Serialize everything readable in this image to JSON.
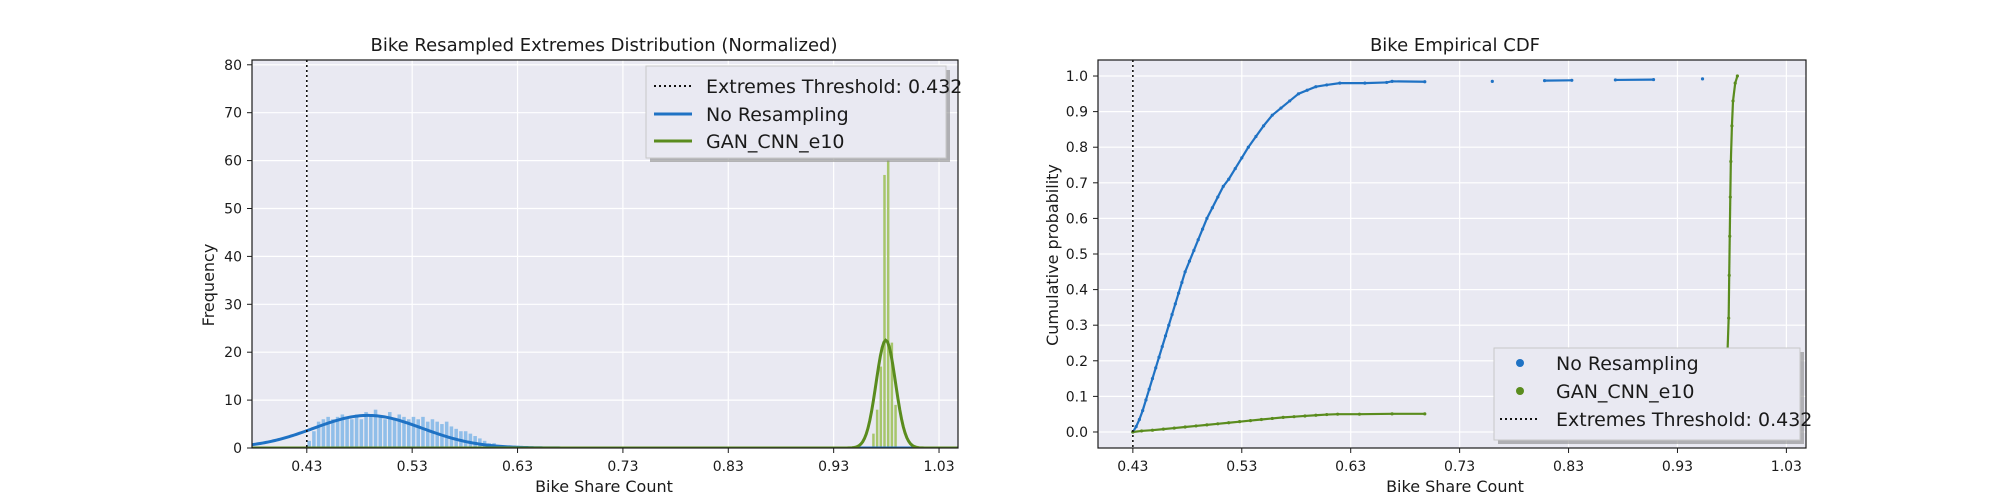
{
  "colors": {
    "plot_bg": "#e9e9f2",
    "grid": "#ffffff",
    "frame": "#1a1a1a",
    "blue": "#1f72c4",
    "blue_hist": "#8bbce8",
    "green": "#5a8c1e",
    "green_hist": "#a3c464",
    "threshold": "#111111"
  },
  "chart_data": [
    {
      "type": "histogram",
      "title": "Bike Resampled Extremes Distribution (Normalized)",
      "xlabel": "Bike Share Count",
      "ylabel": "Frequency",
      "xlim": [
        0.38,
        1.05
      ],
      "ylim": [
        0,
        81
      ],
      "xticks": [
        "0.43",
        "0.53",
        "0.63",
        "0.73",
        "0.83",
        "0.93",
        "1.03"
      ],
      "xtick_values": [
        0.432,
        0.532,
        0.632,
        0.732,
        0.832,
        0.932,
        1.032
      ],
      "yticks": [
        "0",
        "10",
        "20",
        "30",
        "40",
        "50",
        "60",
        "70",
        "80"
      ],
      "ytick_values": [
        0,
        10,
        20,
        30,
        40,
        50,
        60,
        70,
        80
      ],
      "grid": true,
      "legend_position": "top-right",
      "legend": [
        {
          "label": "Extremes Threshold: 0.432",
          "style": "dotted"
        },
        {
          "label": "No Resampling",
          "style": "line-blue"
        },
        {
          "label": "GAN_CNN_e10",
          "style": "line-green"
        }
      ],
      "threshold": 0.432,
      "series": [
        {
          "name": "No Resampling",
          "bin_width": 0.0045,
          "bins": [
            [
              0.432,
              1.5
            ],
            [
              0.4365,
              3.5
            ],
            [
              0.441,
              5.5
            ],
            [
              0.4455,
              6.0
            ],
            [
              0.45,
              6.5
            ],
            [
              0.4545,
              6.0
            ],
            [
              0.459,
              6.5
            ],
            [
              0.4635,
              7.0
            ],
            [
              0.468,
              6.5
            ],
            [
              0.4725,
              6.0
            ],
            [
              0.477,
              7.0
            ],
            [
              0.4815,
              6.0
            ],
            [
              0.486,
              7.5
            ],
            [
              0.4905,
              6.5
            ],
            [
              0.495,
              8.0
            ],
            [
              0.4995,
              6.5
            ],
            [
              0.504,
              6.0
            ],
            [
              0.5085,
              7.5
            ],
            [
              0.513,
              6.0
            ],
            [
              0.5175,
              7.0
            ],
            [
              0.522,
              6.5
            ],
            [
              0.5265,
              6.0
            ],
            [
              0.531,
              6.5
            ],
            [
              0.5355,
              6.0
            ],
            [
              0.54,
              6.5
            ],
            [
              0.5445,
              5.5
            ],
            [
              0.549,
              6.0
            ],
            [
              0.5535,
              5.5
            ],
            [
              0.558,
              5.0
            ],
            [
              0.5625,
              5.5
            ],
            [
              0.567,
              4.5
            ],
            [
              0.5715,
              4.0
            ],
            [
              0.576,
              3.5
            ],
            [
              0.5805,
              3.5
            ],
            [
              0.585,
              3.0
            ],
            [
              0.5895,
              2.5
            ],
            [
              0.594,
              2.0
            ],
            [
              0.5985,
              1.5
            ],
            [
              0.603,
              1.0
            ],
            [
              0.6075,
              1.0
            ],
            [
              0.612,
              0.5
            ],
            [
              0.6165,
              0.5
            ],
            [
              0.621,
              0.3
            ]
          ],
          "kde": {
            "mean": 0.49,
            "sd": 0.0515,
            "peak": 6.8
          }
        },
        {
          "name": "GAN_CNN_e10",
          "bin_width": 0.0035,
          "bins": [
            [
              0.968,
              3.0
            ],
            [
              0.9715,
              8.0
            ],
            [
              0.975,
              17.0
            ],
            [
              0.9785,
              57.0
            ],
            [
              0.982,
              60.0
            ],
            [
              0.9855,
              22.0
            ],
            [
              0.989,
              9.0
            ]
          ],
          "kde": {
            "mean": 0.9815,
            "sd": 0.0092,
            "peak": 22.5
          }
        }
      ]
    },
    {
      "type": "scatter",
      "title": "Bike Empirical CDF",
      "xlabel": "Bike Share Count",
      "ylabel": "Cumulative probability",
      "xlim": [
        0.4,
        1.05
      ],
      "ylim": [
        -0.045,
        1.045
      ],
      "xticks": [
        "0.43",
        "0.53",
        "0.63",
        "0.73",
        "0.83",
        "0.93",
        "1.03"
      ],
      "xtick_values": [
        0.432,
        0.532,
        0.632,
        0.732,
        0.832,
        0.932,
        1.032
      ],
      "yticks": [
        "0.0",
        "0.1",
        "0.2",
        "0.3",
        "0.4",
        "0.5",
        "0.6",
        "0.7",
        "0.8",
        "0.9",
        "1.0"
      ],
      "ytick_values": [
        0,
        0.1,
        0.2,
        0.3,
        0.4,
        0.5,
        0.6,
        0.7,
        0.8,
        0.9,
        1.0
      ],
      "grid": true,
      "legend_position": "bottom-right",
      "legend": [
        {
          "label": "No Resampling",
          "style": "dot-blue"
        },
        {
          "label": "GAN_CNN_e10",
          "style": "dot-green"
        },
        {
          "label": "Extremes Threshold: 0.432",
          "style": "dotted"
        }
      ],
      "threshold": 0.432,
      "series": [
        {
          "name": "No Resampling",
          "points": [
            [
              0.432,
              0.0
            ],
            [
              0.435,
              0.015
            ],
            [
              0.438,
              0.035
            ],
            [
              0.441,
              0.06
            ],
            [
              0.444,
              0.09
            ],
            [
              0.447,
              0.12
            ],
            [
              0.45,
              0.15
            ],
            [
              0.453,
              0.18
            ],
            [
              0.456,
              0.21
            ],
            [
              0.459,
              0.24
            ],
            [
              0.462,
              0.27
            ],
            [
              0.465,
              0.3
            ],
            [
              0.468,
              0.33
            ],
            [
              0.471,
              0.36
            ],
            [
              0.474,
              0.39
            ],
            [
              0.477,
              0.42
            ],
            [
              0.48,
              0.45
            ],
            [
              0.484,
              0.48
            ],
            [
              0.488,
              0.51
            ],
            [
              0.492,
              0.54
            ],
            [
              0.496,
              0.57
            ],
            [
              0.5,
              0.6
            ],
            [
              0.505,
              0.63
            ],
            [
              0.51,
              0.66
            ],
            [
              0.515,
              0.69
            ],
            [
              0.52,
              0.71
            ],
            [
              0.526,
              0.74
            ],
            [
              0.532,
              0.77
            ],
            [
              0.538,
              0.8
            ],
            [
              0.545,
              0.83
            ],
            [
              0.552,
              0.86
            ],
            [
              0.56,
              0.89
            ],
            [
              0.568,
              0.91
            ],
            [
              0.576,
              0.93
            ],
            [
              0.584,
              0.95
            ],
            [
              0.592,
              0.96
            ],
            [
              0.6,
              0.97
            ],
            [
              0.61,
              0.975
            ],
            [
              0.622,
              0.98
            ],
            [
              0.645,
              0.98
            ],
            [
              0.665,
              0.982
            ],
            [
              0.67,
              0.985
            ],
            [
              0.7,
              0.984
            ],
            [
              0.762,
              0.985
            ],
            [
              0.81,
              0.987
            ],
            [
              0.835,
              0.988
            ],
            [
              0.875,
              0.989
            ],
            [
              0.91,
              0.99
            ],
            [
              0.955,
              0.992
            ]
          ]
        },
        {
          "name": "GAN_CNN_e10",
          "points": [
            [
              0.432,
              0.0
            ],
            [
              0.44,
              0.003
            ],
            [
              0.45,
              0.005
            ],
            [
              0.46,
              0.008
            ],
            [
              0.47,
              0.011
            ],
            [
              0.48,
              0.014
            ],
            [
              0.49,
              0.017
            ],
            [
              0.5,
              0.02
            ],
            [
              0.51,
              0.023
            ],
            [
              0.52,
              0.026
            ],
            [
              0.53,
              0.029
            ],
            [
              0.54,
              0.032
            ],
            [
              0.55,
              0.035
            ],
            [
              0.56,
              0.038
            ],
            [
              0.57,
              0.041
            ],
            [
              0.58,
              0.043
            ],
            [
              0.59,
              0.045
            ],
            [
              0.6,
              0.047
            ],
            [
              0.61,
              0.049
            ],
            [
              0.62,
              0.05
            ],
            [
              0.64,
              0.05
            ],
            [
              0.67,
              0.051
            ],
            [
              0.7,
              0.051
            ],
            [
              0.978,
              0.23
            ],
            [
              0.979,
              0.32
            ],
            [
              0.9795,
              0.44
            ],
            [
              0.98,
              0.55
            ],
            [
              0.9805,
              0.66
            ],
            [
              0.981,
              0.76
            ],
            [
              0.982,
              0.86
            ],
            [
              0.983,
              0.93
            ],
            [
              0.985,
              0.98
            ],
            [
              0.987,
              1.0
            ]
          ]
        }
      ]
    }
  ]
}
